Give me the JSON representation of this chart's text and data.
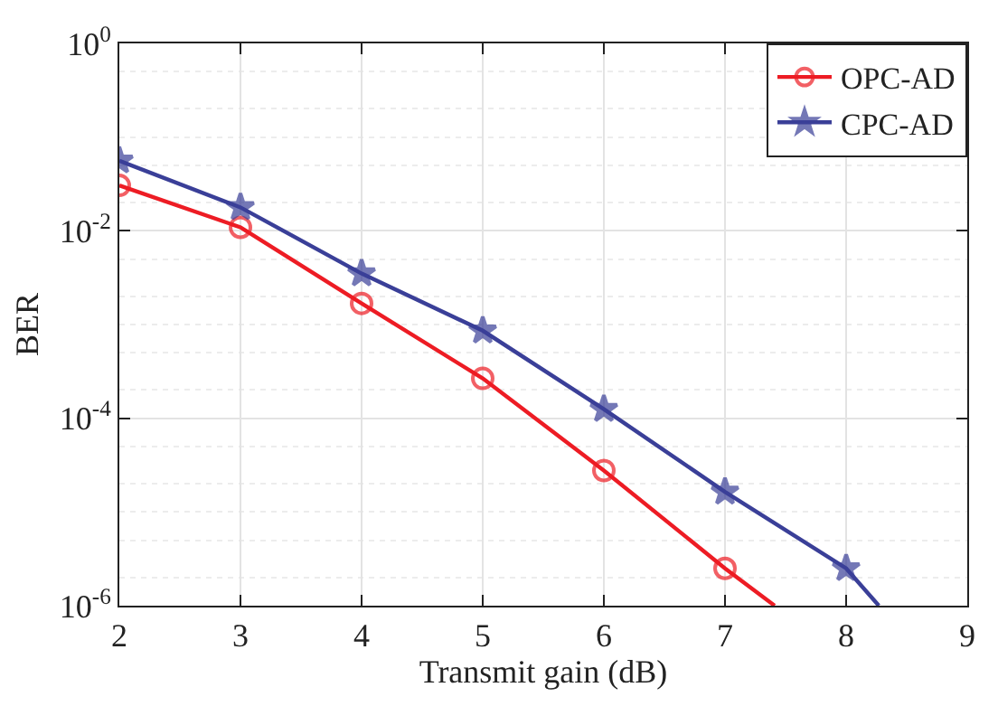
{
  "chart_data": {
    "type": "line",
    "xlabel": "Transmit gain (dB)",
    "ylabel": "BER",
    "log": "y",
    "grid": true,
    "legend": "top right",
    "xlim": [
      2,
      9
    ],
    "xticks": [
      2,
      3,
      4,
      5,
      6,
      7,
      8,
      9
    ],
    "ylim": [
      1e-06,
      1
    ],
    "yticks": [
      {
        "value": 1e-06,
        "label": "10$^{-6}$"
      },
      {
        "value": 0.0001,
        "label": "10$^{-4}$"
      },
      {
        "value": 0.01,
        "label": "10$^{-2}$"
      },
      {
        "value": 1,
        "label": "10$^{0}$"
      }
    ],
    "series": [
      {
        "name": "OPC-AD",
        "color": "#ed1c24",
        "marker": "circle",
        "x": [
          2,
          3,
          4,
          5,
          6,
          7,
          7.41
        ],
        "values": [
          0.0305,
          0.0109,
          0.00168,
          0.000266,
          2.77e-05,
          2.5e-06,
          1e-06
        ]
      },
      {
        "name": "CPC-AD",
        "color": "#3a3f98",
        "marker": "star",
        "x": [
          2,
          3,
          4,
          5,
          6,
          7,
          8,
          8.27
        ],
        "values": [
          0.056,
          0.0178,
          0.0035,
          0.00086,
          0.000125,
          1.64e-05,
          2.5e-06,
          1e-06
        ]
      }
    ]
  }
}
